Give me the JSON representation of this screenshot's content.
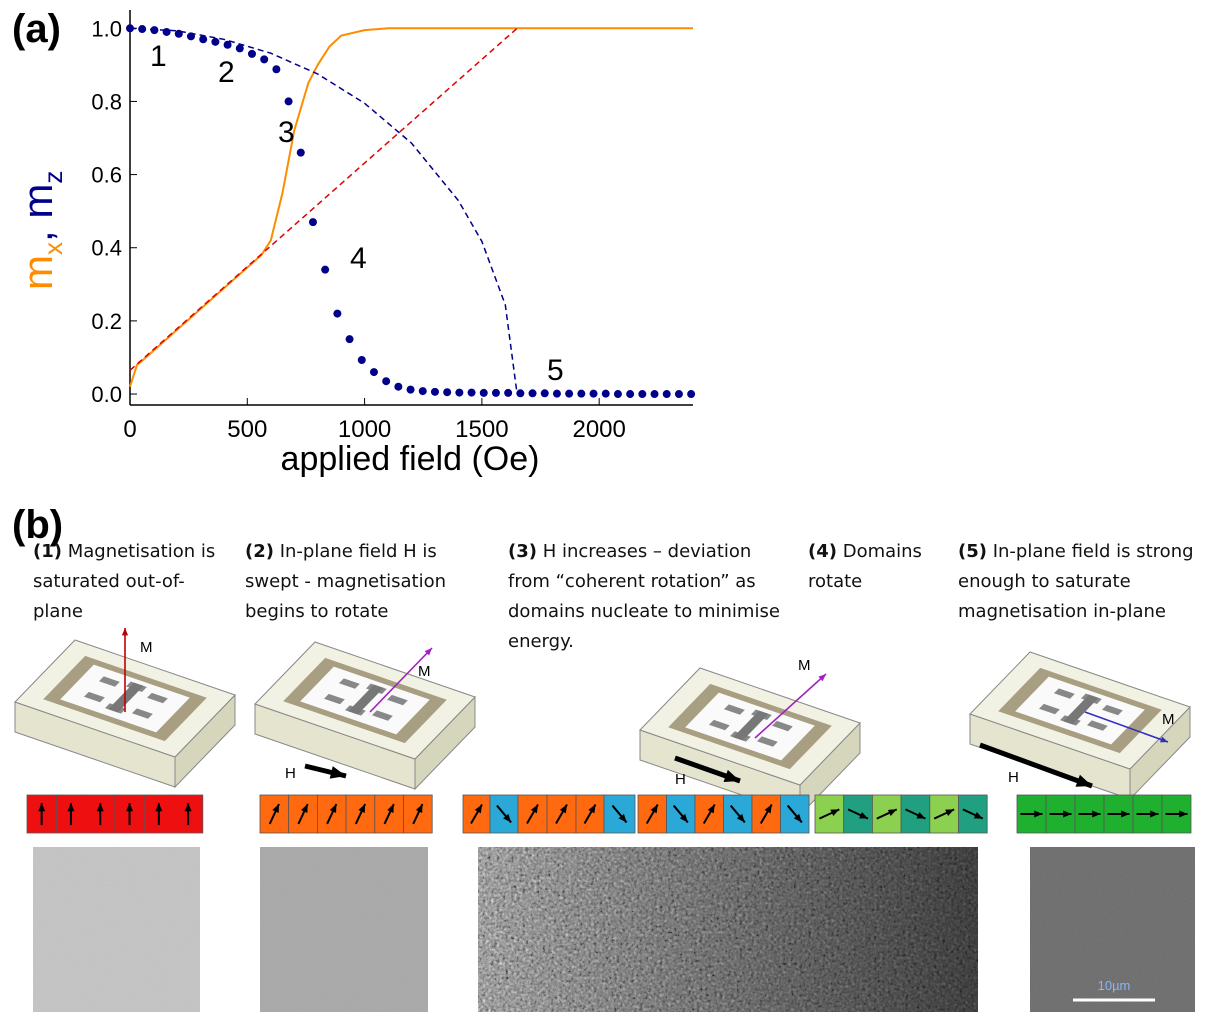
{
  "chart_data": {
    "type": "line",
    "title": "(a)",
    "xlabel": "applied field (Oe)",
    "ylabel_parts": [
      {
        "text": "m",
        "color": "#ff8c00"
      },
      {
        "text": "x",
        "sub": true,
        "color": "#ff8c00"
      },
      {
        "text": ", m",
        "color": "#00008b"
      },
      {
        "text": "z",
        "sub": true,
        "color": "#00008b"
      }
    ],
    "xlim": [
      0,
      2400
    ],
    "ylim": [
      -0.03,
      1.05
    ],
    "xticks": [
      0,
      500,
      1000,
      1500,
      2000
    ],
    "yticks": [
      {
        "value": 0,
        "label": "0.0"
      },
      {
        "value": 0.2,
        "label": "0.2"
      },
      {
        "value": 0.4,
        "label": "0.4"
      },
      {
        "value": 0.6,
        "label": "0.6"
      },
      {
        "value": 0.8,
        "label": "0.8"
      },
      {
        "value": 1,
        "label": "1.0"
      }
    ],
    "annotations": [
      "1",
      "2",
      "3",
      "4",
      "5"
    ],
    "series": [
      {
        "style": "markers",
        "color": "#00008b",
        "x": [
          0,
          52,
          104,
          156,
          208,
          260,
          312,
          364,
          416,
          468,
          520,
          572,
          624,
          676,
          728,
          780,
          832,
          884,
          936,
          988,
          1040,
          1092,
          1144,
          1196,
          1248,
          1300,
          1352,
          1404,
          1456,
          1508,
          1560,
          1612,
          1664,
          1716,
          1768,
          1820,
          1872,
          1924,
          1976,
          2028,
          2080,
          2132,
          2184,
          2236,
          2288,
          2340,
          2392
        ],
        "values": [
          1.0,
          0.998,
          0.995,
          0.99,
          0.985,
          0.978,
          0.97,
          0.963,
          0.955,
          0.945,
          0.93,
          0.915,
          0.888,
          0.8,
          0.66,
          0.47,
          0.34,
          0.22,
          0.15,
          0.093,
          0.06,
          0.035,
          0.02,
          0.012,
          0.008,
          0.006,
          0.005,
          0.004,
          0.004,
          0.003,
          0.003,
          0.003,
          0.002,
          0.002,
          0.002,
          0.001,
          0.001,
          0.001,
          0.001,
          0.001,
          0,
          0,
          0,
          0,
          0,
          0,
          0
        ]
      },
      {
        "style": "solid",
        "color": "#ff8c00",
        "x": [
          0,
          30,
          50,
          560,
          600,
          650,
          700,
          760,
          800,
          850,
          900,
          1000,
          1100,
          2400
        ],
        "values": [
          0.02,
          0.08,
          0.09,
          0.38,
          0.42,
          0.55,
          0.72,
          0.85,
          0.9,
          0.95,
          0.98,
          0.995,
          1.0,
          1.0
        ]
      },
      {
        "style": "dashed",
        "color": "#e00000",
        "x": [
          0,
          1650
        ],
        "values": [
          0.065,
          1.0
        ]
      },
      {
        "style": "dashed",
        "color": "#00008b",
        "x": [
          0,
          200,
          400,
          600,
          800,
          1000,
          1200,
          1400,
          1500,
          1600,
          1650
        ],
        "values": [
          1.0,
          0.993,
          0.97,
          0.932,
          0.875,
          0.795,
          0.686,
          0.529,
          0.417,
          0.244,
          0
        ]
      }
    ]
  },
  "panel_b": {
    "label": "(b)",
    "captions": [
      {
        "num": "(1)",
        "text": "Magnetisation is saturated out-of-plane"
      },
      {
        "num": "(2)",
        "text": "In-plane field H is swept - magnetisation begins to rotate"
      },
      {
        "num": "(3)",
        "text": "H increases – deviation from “coherent rotation” as domains nucleate to minimise energy."
      },
      {
        "num": "(4)",
        "text": "Domains rotate"
      },
      {
        "num": "(5)",
        "text": "In-plane field is strong enough to saturate magnetisation in-plane"
      }
    ],
    "m_label": "M",
    "h_label": "H",
    "scale_bar": "10µm"
  }
}
